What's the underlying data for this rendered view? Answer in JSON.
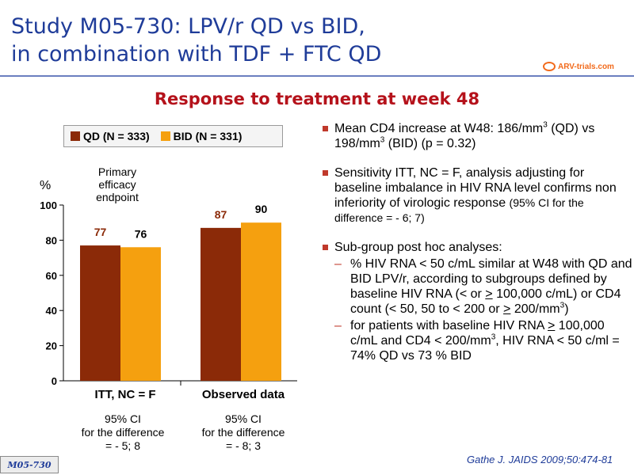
{
  "header": {
    "title_line1": "Study M05-730: LPV/r QD vs BID,",
    "title_line2": "in combination with TDF + FTC QD",
    "logo_text": "ARV-trials.com"
  },
  "subtitle": "Response to treatment at week 48",
  "colors": {
    "qd": "#8b2a08",
    "bid": "#f5a00f",
    "title": "#1f3c99",
    "subtitle": "#b5121b"
  },
  "chart_data": {
    "type": "bar",
    "categories": [
      "ITT, NC = F",
      "Observed data"
    ],
    "series": [
      {
        "name": "QD (N = 333)",
        "values": [
          77,
          87
        ]
      },
      {
        "name": "BID (N = 331)",
        "values": [
          76,
          90
        ]
      }
    ],
    "ylabel": "%",
    "ylim": [
      0,
      100
    ],
    "yticks": [
      "0",
      "20",
      "40",
      "60",
      "80",
      "100"
    ],
    "annotation": [
      "Primary",
      "efficacy",
      "endpoint"
    ],
    "legend_position": "top",
    "grid": false,
    "ci_labels": [
      [
        "95% CI",
        "for the difference",
        "= - 5; 8"
      ],
      [
        "95% CI",
        "for the difference",
        "= - 8; 3"
      ]
    ]
  },
  "bullets": {
    "cd4": {
      "text_a": "Mean CD4 increase at W48: 186/mm",
      "sup_a": "3",
      "text_b": " (QD) vs 198/mm",
      "sup_b": "3",
      "text_c": " (BID) (p = 0.32)"
    },
    "sensitivity": {
      "text": "Sensitivity ITT, NC = F, analysis adjusting for baseline imbalance in HIV RNA level confirms non inferiority of virologic response ",
      "small": "(95% CI for the difference = - 6; 7)"
    },
    "subgroup": {
      "text": "Sub-group post hoc analyses:",
      "item1_dash": "–",
      "item1_a": "% HIV RNA < 50 c/mL similar at W48 with QD and BID LPV/r, according to subgroups defined by baseline HIV RNA (< or ",
      "item1_u1": ">",
      "item1_b": " 100,000 c/mL) or CD4 count (< 50, 50 to < 200 or ",
      "item1_u2": ">",
      "item1_c": " 200/mm",
      "item1_sup": "3",
      "item1_d": ")",
      "item2_dash": "–",
      "item2_a": "for patients with baseline HIV RNA ",
      "item2_u": ">",
      "item2_b": " 100,000 c/mL and CD4 < 200/mm",
      "item2_sup": "3",
      "item2_c": ", HIV RNA < 50 c/ml = 74% QD vs 73 % BID"
    }
  },
  "reference": "Gathe J. JAIDS 2009;50:474-81",
  "badge": "M05-730"
}
